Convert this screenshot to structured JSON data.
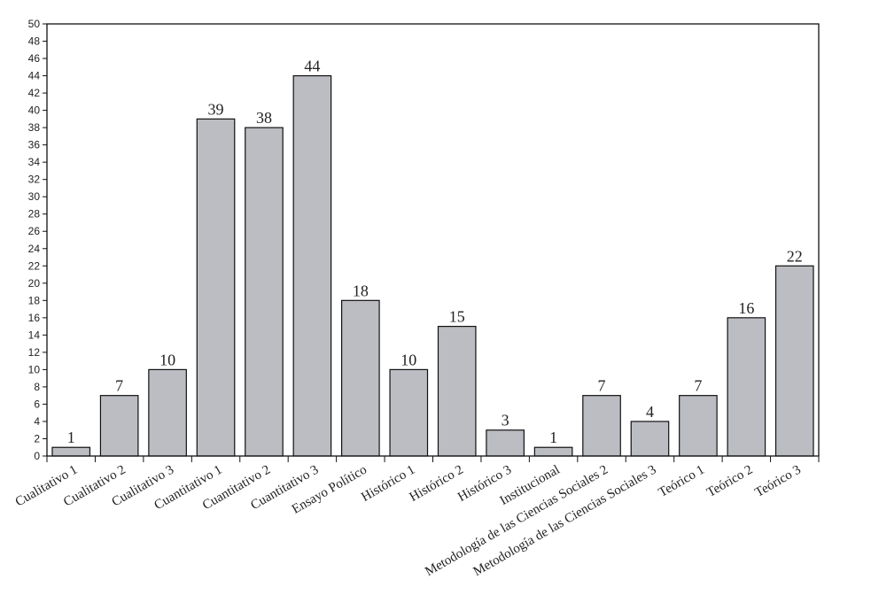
{
  "chart_data": {
    "type": "bar",
    "title": "",
    "xlabel": "",
    "ylabel": "",
    "ylim": [
      0,
      50
    ],
    "ytick_step": 2,
    "grid": false,
    "legend": "none",
    "bar_color": "#bcbdc2",
    "categories": [
      "Cualitativo 1",
      "Cualitativo 2",
      "Cualitativo 3",
      "Cuantitativo 1",
      "Cuantitativo 2",
      "Cuantitativo 3",
      "Ensayo Político",
      "Histórico 1",
      "Histórico 2",
      "Histórico 3",
      "Institucional",
      "Metodología de las Ciencias Sociales 2",
      "Metodología de las Ciencias Sociales 3",
      "Teórico 1",
      "Teórico 2",
      "Teórico 3"
    ],
    "values": [
      1,
      7,
      10,
      39,
      38,
      44,
      18,
      10,
      15,
      3,
      1,
      7,
      4,
      7,
      16,
      22
    ]
  }
}
